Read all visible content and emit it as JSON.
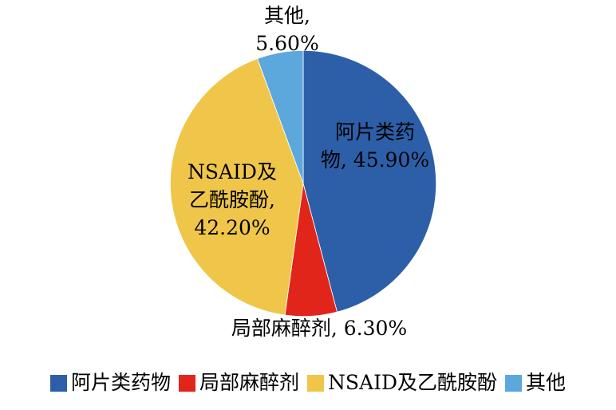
{
  "chart_data": {
    "type": "pie",
    "title": "",
    "legend_position": "bottom",
    "slices": [
      {
        "id": "opioid",
        "label": "阿片类药物",
        "value": 45.9,
        "percent_text": "45.90%",
        "color": "#2D5FA9"
      },
      {
        "id": "local",
        "label": "局部麻醉剂",
        "value": 6.3,
        "percent_text": "6.30%",
        "color": "#E2251B"
      },
      {
        "id": "nsaid",
        "label": "NSAID及乙酰胺酚",
        "value": 42.2,
        "percent_text": "42.20%",
        "color": "#EFC64A"
      },
      {
        "id": "other",
        "label": "其他",
        "value": 5.6,
        "percent_text": "5.60%",
        "color": "#5CA7DC"
      }
    ],
    "data_labels": {
      "other": [
        "其他,",
        "5.60%"
      ],
      "opioid": [
        "阿片类药",
        "物, 45.90%"
      ],
      "nsaid": [
        "NSAID及",
        "乙酰胺酚,",
        "42.20%"
      ],
      "local": [
        "局部麻醉剂, 6.30%"
      ]
    },
    "legend": {
      "items": [
        {
          "label": "阿片类药物",
          "color": "#2D5FA9"
        },
        {
          "label": "局部麻醉剂",
          "color": "#E2251B"
        },
        {
          "label": "NSAID及乙酰胺酚",
          "color": "#EFC64A"
        },
        {
          "label": "其他",
          "color": "#5CA7DC"
        }
      ]
    }
  }
}
